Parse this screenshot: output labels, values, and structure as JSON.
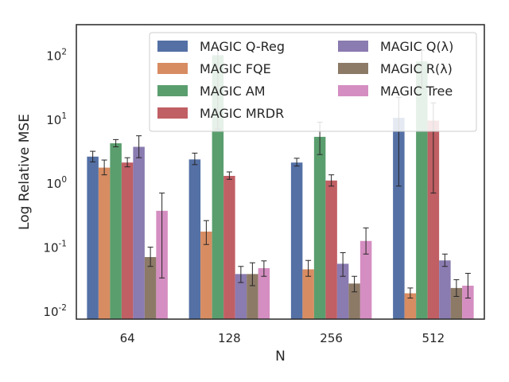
{
  "chart_data": {
    "type": "bar",
    "title": "",
    "xlabel": "N",
    "ylabel": "Log Relative MSE",
    "yscale": "log",
    "ylim": [
      0.0075,
      300
    ],
    "categories": [
      "64",
      "128",
      "256",
      "512"
    ],
    "yticks": [
      {
        "value": 0.01,
        "base": "10",
        "exp": "-2"
      },
      {
        "value": 0.1,
        "base": "10",
        "exp": "-1"
      },
      {
        "value": 1,
        "base": "10",
        "exp": "0"
      },
      {
        "value": 10,
        "base": "10",
        "exp": "1"
      },
      {
        "value": 100,
        "base": "10",
        "exp": "2"
      }
    ],
    "grid": false,
    "legend": {
      "placement": "top-right",
      "columns": 2
    },
    "series": [
      {
        "name": "MAGIC Q-Reg",
        "color": "#5470a5",
        "values": [
          2.6,
          2.35,
          2.1,
          10.5
        ],
        "err_low": [
          2.15,
          1.95,
          1.85,
          0.9
        ],
        "err_high": [
          3.15,
          2.95,
          2.45,
          22
        ]
      },
      {
        "name": "MAGIC FQE",
        "color": "#d88c62",
        "values": [
          1.75,
          0.175,
          0.045,
          0.019
        ],
        "err_low": [
          1.35,
          0.11,
          0.035,
          0.016
        ],
        "err_high": [
          2.3,
          0.26,
          0.062,
          0.023
        ]
      },
      {
        "name": "MAGIC AM",
        "color": "#5a9e6e",
        "values": [
          4.2,
          100,
          5.3,
          80
        ],
        "err_low": [
          3.7,
          7,
          2.8,
          30
        ],
        "err_high": [
          4.8,
          130,
          9,
          120
        ]
      },
      {
        "name": "MAGIC MRDR",
        "color": "#c05f64",
        "values": [
          2.1,
          1.3,
          1.1,
          9.5
        ],
        "err_low": [
          1.8,
          1.15,
          0.9,
          0.7
        ],
        "err_high": [
          2.5,
          1.5,
          1.35,
          18
        ]
      },
      {
        "name": "MAGIC Q(λ)",
        "color": "#8a7bb0",
        "values": [
          3.7,
          0.038,
          0.055,
          0.062
        ],
        "err_low": [
          2.5,
          0.028,
          0.035,
          0.05
        ],
        "err_high": [
          5.5,
          0.05,
          0.082,
          0.078
        ]
      },
      {
        "name": "MAGIC R(λ)",
        "color": "#8c7a67",
        "values": [
          0.07,
          0.038,
          0.027,
          0.023
        ],
        "err_low": [
          0.05,
          0.025,
          0.02,
          0.017
        ],
        "err_high": [
          0.1,
          0.057,
          0.035,
          0.031
        ]
      },
      {
        "name": "MAGIC Tree",
        "color": "#d58ec1",
        "values": [
          0.37,
          0.047,
          0.125,
          0.025
        ],
        "err_low": [
          0.033,
          0.035,
          0.078,
          0.016
        ],
        "err_high": [
          0.7,
          0.061,
          0.2,
          0.039
        ]
      }
    ]
  }
}
